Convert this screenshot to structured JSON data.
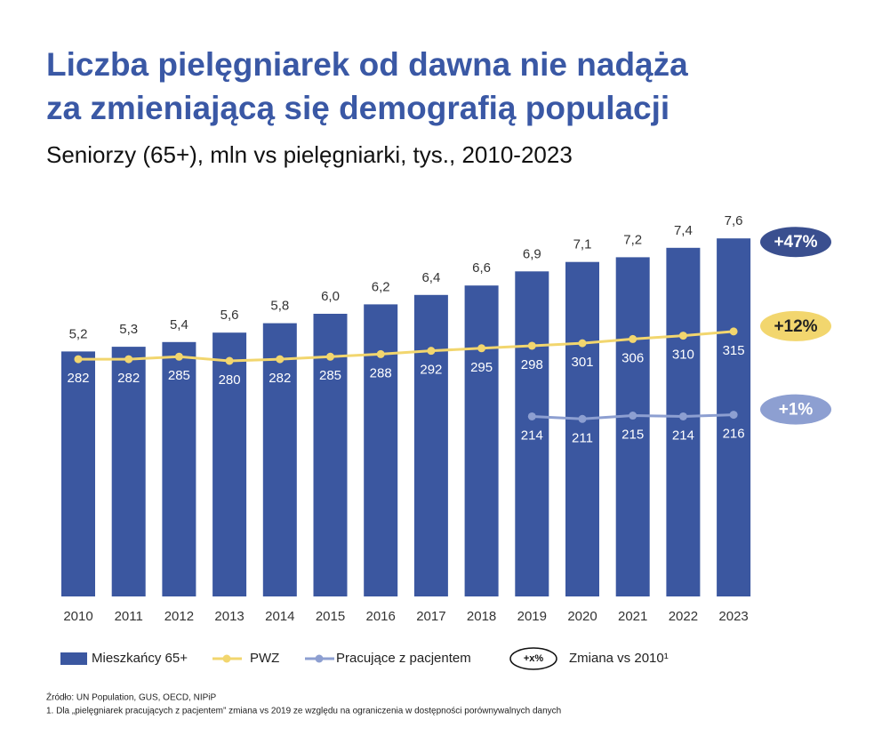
{
  "chart_data": {
    "type": "bar",
    "title": [
      "Liczba pielęgniarek od dawna nie nadąża",
      "za zmieniającą się demografią populacji"
    ],
    "subtitle": "Seniorzy (65+), mln vs pielęgniarki, tys., 2010-2023",
    "categories": [
      "2010",
      "2011",
      "2012",
      "2013",
      "2014",
      "2015",
      "2016",
      "2017",
      "2018",
      "2019",
      "2020",
      "2021",
      "2022",
      "2023"
    ],
    "ylim": [
      0,
      8
    ],
    "y2lim": [
      0,
      448
    ],
    "series": [
      {
        "name": "Mieszkańcy 65+",
        "type": "bar",
        "color": "#3b57a0",
        "values": [
          5.2,
          5.3,
          5.4,
          5.6,
          5.8,
          6.0,
          6.2,
          6.4,
          6.6,
          6.9,
          7.1,
          7.2,
          7.4,
          7.6
        ],
        "value_labels": [
          "5,2",
          "5,3",
          "5,4",
          "5,6",
          "5,8",
          "6,0",
          "6,2",
          "6,4",
          "6,6",
          "6,9",
          "7,1",
          "7,2",
          "7,4",
          "7,6"
        ]
      },
      {
        "name": "PWZ",
        "type": "line",
        "axis": "y2",
        "color": "#f2d66e",
        "values": [
          282,
          282,
          285,
          280,
          282,
          285,
          288,
          292,
          295,
          298,
          301,
          306,
          310,
          315
        ]
      },
      {
        "name": "Pracujące z pacjentem",
        "type": "line",
        "axis": "y2",
        "color": "#8d9fd1",
        "values": [
          null,
          null,
          null,
          null,
          null,
          null,
          null,
          null,
          null,
          214,
          211,
          215,
          214,
          216
        ]
      }
    ],
    "annotations": [
      {
        "text": "+47%",
        "color": "#3a4f8f",
        "text_color": "#ffffff"
      },
      {
        "text": "+12%",
        "color": "#f2d66e",
        "text_color": "#222222"
      },
      {
        "text": "+1%",
        "color": "#8d9fd1",
        "text_color": "#ffffff"
      }
    ],
    "legend_badge": "+x%",
    "legend_badge_text": "Zmiana vs 2010¹",
    "source": "Źródło: UN Population, GUS, OECD, NIPiP",
    "footnote": "1. Dla „pielęgniarek pracujących z pacjentem” zmiana vs 2019 ze względu na ograniczenia w dostępności porównywalnych danych"
  }
}
